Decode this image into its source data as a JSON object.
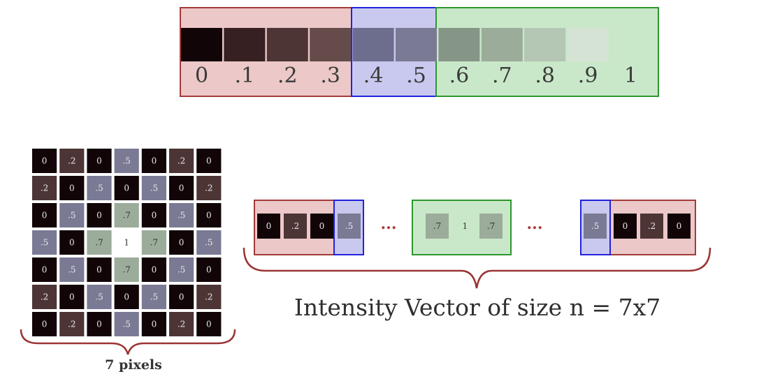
{
  "colors": {
    "red_group_fill": "#ecc8c8",
    "red_group_stroke": "#a33a3a",
    "blue_group_fill": "#c9c9ef",
    "blue_group_stroke": "#2222dd",
    "green_group_fill": "#c9e8c9",
    "green_group_stroke": "#2e962e",
    "brace_color": "#9c3434",
    "cell_gray_levels": [
      "#120508",
      "#362022",
      "#4d3535",
      "#654c4b",
      "#6d6d8d",
      "#7a7a95",
      "#869686",
      "#9bac9b",
      "#b4c6b4",
      "#d5e3d5",
      "#ffffff"
    ]
  },
  "scale": {
    "labels": [
      "0",
      ".1",
      ".2",
      ".3",
      ".4",
      ".5",
      ".6",
      ".7",
      ".8",
      ".9",
      "1"
    ]
  },
  "grid": {
    "values": [
      [
        "0",
        ".2",
        "0",
        ".5",
        "0",
        ".2",
        "0"
      ],
      [
        ".2",
        "0",
        ".5",
        "0",
        ".5",
        "0",
        ".2"
      ],
      [
        "0",
        ".5",
        "0",
        ".7",
        "0",
        ".5",
        "0"
      ],
      [
        ".5",
        "0",
        ".7",
        "1",
        ".7",
        "0",
        ".5"
      ],
      [
        "0",
        ".5",
        "0",
        ".7",
        "0",
        ".5",
        "0"
      ],
      [
        ".2",
        "0",
        ".5",
        "0",
        ".5",
        "0",
        ".2"
      ],
      [
        "0",
        ".2",
        "0",
        ".5",
        "0",
        ".2",
        "0"
      ]
    ],
    "caption": "7 pixels"
  },
  "vector": {
    "left_group": [
      "0",
      ".2",
      "0",
      ".5"
    ],
    "middle_group": [
      ".7",
      "1",
      ".7"
    ],
    "right_group": [
      ".5",
      "0",
      ".2",
      "0"
    ],
    "ellipsis": "...",
    "caption": "Intensity Vector of size n = 7x7"
  }
}
